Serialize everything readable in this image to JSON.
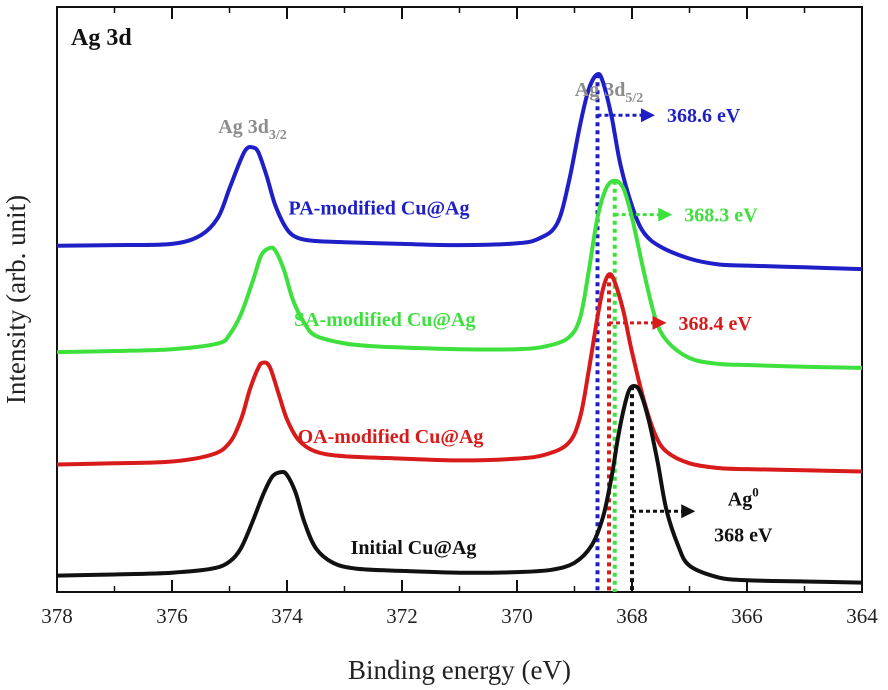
{
  "chart_data": {
    "type": "line",
    "title": "Ag 3d",
    "xlabel": "Binding energy (eV)",
    "ylabel": "Intensity (arb. unit)",
    "xlim": [
      378,
      364
    ],
    "x_reversed": true,
    "xticks": [
      378,
      376,
      374,
      372,
      370,
      368,
      366,
      364
    ],
    "ylim": [
      0,
      100
    ],
    "yticks_visible": false,
    "x_axis_label_parts": {
      "text": "Binding energy (eV)"
    },
    "peak_labels": [
      {
        "id": "ag-3d32",
        "main": "Ag 3d",
        "sub": "3/2",
        "x": 374.6
      },
      {
        "id": "ag-3d52",
        "main": "Ag 3d",
        "sub": "5/2",
        "x": 368.4
      }
    ],
    "series": [
      {
        "name": "PA-modified Cu@Ag",
        "color": "#1f1fc8",
        "label_x": 372.4,
        "label_y": 64.5,
        "baseline": 59,
        "tail": 55.2,
        "points": [
          [
            378,
            59.2
          ],
          [
            377,
            59.3
          ],
          [
            376,
            59.5
          ],
          [
            375.5,
            61
          ],
          [
            375.2,
            64
          ],
          [
            375,
            69
          ],
          [
            374.8,
            74
          ],
          [
            374.7,
            75.8
          ],
          [
            374.6,
            76
          ],
          [
            374.5,
            75.2
          ],
          [
            374.35,
            71
          ],
          [
            374.2,
            66
          ],
          [
            374,
            62
          ],
          [
            373.8,
            60.5
          ],
          [
            373.5,
            60
          ],
          [
            373,
            59.8
          ],
          [
            372,
            59.5
          ],
          [
            371,
            59.3
          ],
          [
            370,
            59.6
          ],
          [
            369.6,
            60.5
          ],
          [
            369.3,
            63
          ],
          [
            369.1,
            70
          ],
          [
            368.9,
            80
          ],
          [
            368.75,
            86
          ],
          [
            368.6,
            88.5
          ],
          [
            368.5,
            87
          ],
          [
            368.35,
            81
          ],
          [
            368.2,
            73
          ],
          [
            368,
            66
          ],
          [
            367.8,
            61.5
          ],
          [
            367.5,
            59
          ],
          [
            367,
            57
          ],
          [
            366.5,
            56
          ],
          [
            366,
            55.8
          ],
          [
            365,
            55.5
          ],
          [
            364,
            55.2
          ]
        ]
      },
      {
        "name": "SA-modified Cu@Ag",
        "color": "#3ee03e",
        "label_x": 372.3,
        "label_y": 45.5,
        "baseline": 41,
        "tail": 38.3,
        "points": [
          [
            378,
            41
          ],
          [
            377,
            41.2
          ],
          [
            376,
            41.5
          ],
          [
            375.2,
            42.5
          ],
          [
            375,
            44
          ],
          [
            374.8,
            47.5
          ],
          [
            374.6,
            53
          ],
          [
            374.45,
            57.5
          ],
          [
            374.3,
            58.8
          ],
          [
            374.2,
            58.3
          ],
          [
            374.05,
            55
          ],
          [
            373.9,
            50
          ],
          [
            373.7,
            46
          ],
          [
            373.5,
            43.8
          ],
          [
            373,
            42.5
          ],
          [
            372.5,
            42
          ],
          [
            372,
            41.8
          ],
          [
            371,
            41.5
          ],
          [
            370,
            41.5
          ],
          [
            369.5,
            42
          ],
          [
            369.1,
            43.5
          ],
          [
            368.9,
            47
          ],
          [
            368.75,
            55
          ],
          [
            368.6,
            64
          ],
          [
            368.45,
            69
          ],
          [
            368.3,
            70.3
          ],
          [
            368.15,
            69
          ],
          [
            368,
            64
          ],
          [
            367.8,
            55
          ],
          [
            367.6,
            47
          ],
          [
            367.4,
            43
          ],
          [
            367,
            40
          ],
          [
            366.5,
            39
          ],
          [
            366,
            38.8
          ],
          [
            365,
            38.5
          ],
          [
            364,
            38.3
          ]
        ]
      },
      {
        "name": "OA-modified Cu@Ag",
        "color": "#d91a1a",
        "label_x": 372.2,
        "label_y": 25.5,
        "baseline": 21.5,
        "tail": 20.6,
        "points": [
          [
            378,
            21.8
          ],
          [
            377,
            22
          ],
          [
            376,
            22.3
          ],
          [
            375.3,
            23.5
          ],
          [
            375,
            25.5
          ],
          [
            374.8,
            29.5
          ],
          [
            374.65,
            34.5
          ],
          [
            374.5,
            38.3
          ],
          [
            374.42,
            39.2
          ],
          [
            374.3,
            38.5
          ],
          [
            374.15,
            34
          ],
          [
            374,
            29.5
          ],
          [
            373.8,
            26
          ],
          [
            373.5,
            24
          ],
          [
            373,
            23.2
          ],
          [
            372,
            22.8
          ],
          [
            371,
            22.5
          ],
          [
            370,
            22.8
          ],
          [
            369.5,
            23.5
          ],
          [
            369.1,
            25.5
          ],
          [
            368.9,
            30
          ],
          [
            368.75,
            38
          ],
          [
            368.6,
            47
          ],
          [
            368.5,
            52
          ],
          [
            368.4,
            54.3
          ],
          [
            368.3,
            53
          ],
          [
            368.15,
            48
          ],
          [
            368,
            41
          ],
          [
            367.8,
            33
          ],
          [
            367.6,
            27
          ],
          [
            367.4,
            24
          ],
          [
            367,
            22
          ],
          [
            366.5,
            21.2
          ],
          [
            366,
            21
          ],
          [
            365,
            20.8
          ],
          [
            364,
            20.6
          ]
        ]
      },
      {
        "name": "Initial Cu@Ag",
        "color": "#111111",
        "label_x": 371.8,
        "label_y": 6.5,
        "baseline": 2.5,
        "tail": 1.6,
        "points": [
          [
            378,
            2.8
          ],
          [
            377,
            3
          ],
          [
            376,
            3.3
          ],
          [
            375.3,
            4
          ],
          [
            375,
            5.2
          ],
          [
            374.8,
            7.5
          ],
          [
            374.6,
            12
          ],
          [
            374.4,
            17
          ],
          [
            374.25,
            19.8
          ],
          [
            374.1,
            20.5
          ],
          [
            374,
            20
          ],
          [
            373.85,
            17
          ],
          [
            373.7,
            12
          ],
          [
            373.5,
            7.5
          ],
          [
            373.2,
            5
          ],
          [
            372.8,
            4
          ],
          [
            372,
            3.6
          ],
          [
            371,
            3.3
          ],
          [
            370,
            3.4
          ],
          [
            369.4,
            3.8
          ],
          [
            369,
            5
          ],
          [
            368.7,
            8
          ],
          [
            368.5,
            13
          ],
          [
            368.35,
            20
          ],
          [
            368.25,
            26
          ],
          [
            368.15,
            31
          ],
          [
            368.05,
            34.5
          ],
          [
            367.95,
            35.2
          ],
          [
            367.85,
            34
          ],
          [
            367.7,
            29
          ],
          [
            367.55,
            22
          ],
          [
            367.4,
            14
          ],
          [
            367.2,
            8
          ],
          [
            367,
            4.5
          ],
          [
            366.5,
            2.5
          ],
          [
            366,
            2
          ],
          [
            365,
            1.8
          ],
          [
            364,
            1.6
          ]
        ]
      }
    ],
    "reference_lines": [
      {
        "x": 368.6,
        "color": "#1f1fc8",
        "y_top": 88.5
      },
      {
        "x": 368.3,
        "color": "#3ee03e",
        "y_top": 70.3
      },
      {
        "x": 368.4,
        "color": "#d91a1a",
        "y_top": 54.3
      },
      {
        "x": 368.0,
        "color": "#111111",
        "y_top": 35.2
      }
    ],
    "annotations": [
      {
        "text": "368.6 eV",
        "color": "#1f1fc8",
        "x_from": 368.6,
        "x_to": 367.6,
        "y": 81.5
      },
      {
        "text": "368.3 eV",
        "color": "#3ee03e",
        "x_from": 368.3,
        "x_to": 367.3,
        "y": 64.5
      },
      {
        "text": "368.4 eV",
        "color": "#d91a1a",
        "x_from": 368.4,
        "x_to": 367.4,
        "y": 46.0
      },
      {
        "text": "368 eV",
        "prefix": "Ag",
        "prefix_sup": "0",
        "color": "#111111",
        "x_from": 368.0,
        "x_to": 366.9,
        "y": 13.8
      }
    ]
  }
}
